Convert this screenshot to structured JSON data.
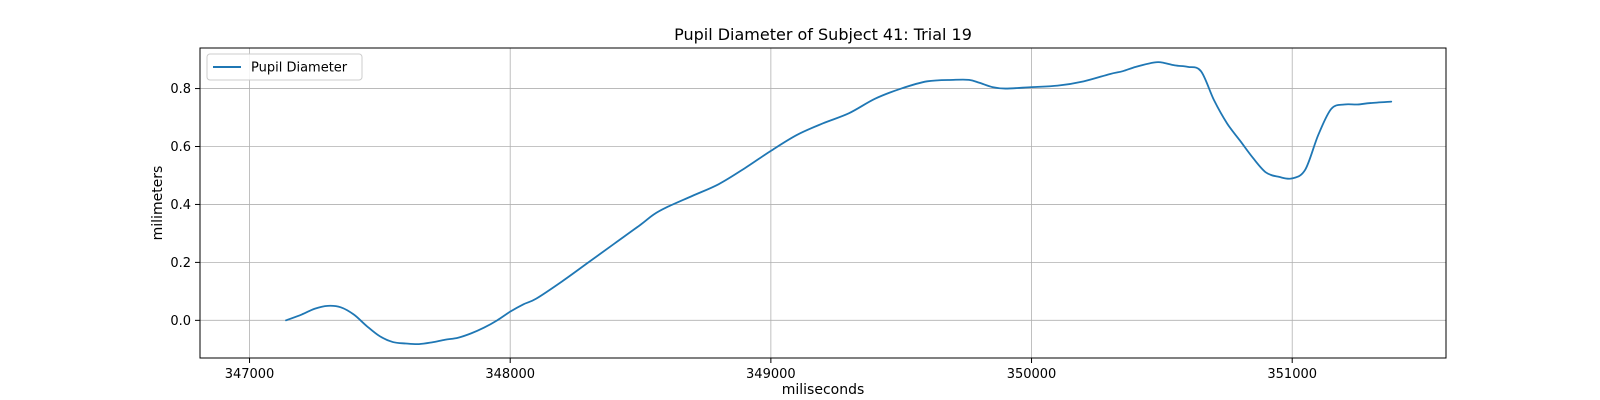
{
  "chart_data": {
    "type": "line",
    "title": "Pupil Diameter of Subject 41: Trial 19",
    "xlabel": "miliseconds",
    "ylabel": "milimeters",
    "xlim": [
      346810,
      351590
    ],
    "ylim": [
      -0.13,
      0.94
    ],
    "xticks": [
      347000,
      348000,
      349000,
      350000,
      351000
    ],
    "yticks": [
      0.0,
      0.2,
      0.4,
      0.6,
      0.8
    ],
    "xtick_labels": [
      "347000",
      "348000",
      "349000",
      "350000",
      "351000"
    ],
    "ytick_labels": [
      "0.0",
      "0.2",
      "0.4",
      "0.6",
      "0.8"
    ],
    "grid": true,
    "legend_position": "upper-left",
    "line_color": "#1f77b4",
    "series": [
      {
        "name": "Pupil Diameter",
        "x": [
          347140,
          347200,
          347250,
          347300,
          347350,
          347400,
          347450,
          347500,
          347550,
          347600,
          347650,
          347700,
          347750,
          347800,
          347850,
          347900,
          347950,
          348000,
          348050,
          348100,
          348200,
          348300,
          348400,
          348500,
          348550,
          348600,
          348700,
          348800,
          348900,
          349000,
          349100,
          349200,
          349300,
          349400,
          349500,
          349600,
          349700,
          349760,
          349800,
          349850,
          349900,
          350000,
          350100,
          350200,
          350300,
          350350,
          350400,
          350470,
          350500,
          350550,
          350600,
          350650,
          350700,
          350750,
          350800,
          350850,
          350900,
          350950,
          351000,
          351050,
          351100,
          351150,
          351200,
          351250,
          351300,
          351380
        ],
        "values": [
          0.0,
          0.02,
          0.04,
          0.05,
          0.045,
          0.02,
          -0.02,
          -0.055,
          -0.075,
          -0.08,
          -0.082,
          -0.076,
          -0.067,
          -0.06,
          -0.045,
          -0.025,
          0.0,
          0.03,
          0.055,
          0.075,
          0.135,
          0.2,
          0.265,
          0.33,
          0.365,
          0.39,
          0.43,
          0.47,
          0.525,
          0.585,
          0.64,
          0.68,
          0.715,
          0.765,
          0.8,
          0.825,
          0.83,
          0.83,
          0.82,
          0.805,
          0.8,
          0.805,
          0.81,
          0.825,
          0.85,
          0.86,
          0.875,
          0.89,
          0.89,
          0.88,
          0.875,
          0.86,
          0.76,
          0.68,
          0.62,
          0.56,
          0.51,
          0.495,
          0.49,
          0.52,
          0.64,
          0.73,
          0.745,
          0.745,
          0.75,
          0.755
        ]
      }
    ]
  }
}
